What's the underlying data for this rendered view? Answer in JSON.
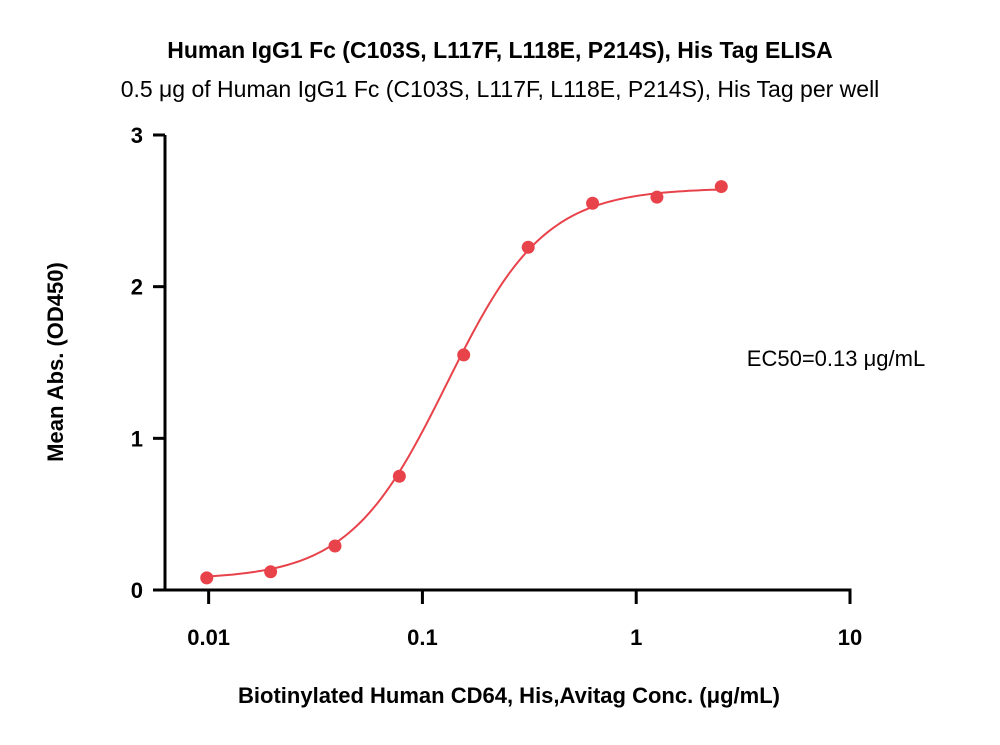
{
  "chart_data": {
    "type": "scatter",
    "title": "Human IgG1 Fc (C103S, L117F, L118E, P214S), His Tag ELISA",
    "subtitle": "0.5 μg of Human IgG1 Fc (C103S, L117F, L118E, P214S), His Tag per well",
    "xlabel": "Biotinylated Human CD64, His,Avitag Conc. (μg/mL)",
    "ylabel": "Mean Abs. (OD450)",
    "xscale": "log",
    "xlim": [
      0.00625,
      10
    ],
    "ylim": [
      0,
      3
    ],
    "xticks": [
      0.01,
      0.1,
      1,
      10
    ],
    "xtick_labels": [
      "0.01",
      "0.1",
      "1",
      "10"
    ],
    "yticks": [
      0,
      1,
      2,
      3
    ],
    "ytick_labels": [
      "0",
      "1",
      "2",
      "3"
    ],
    "grid": false,
    "color": "#e8434b",
    "series": [
      {
        "x": [
          0.0098,
          0.0195,
          0.039,
          0.078,
          0.156,
          0.3125,
          0.625,
          1.25,
          2.5
        ],
        "y": [
          0.08,
          0.12,
          0.29,
          0.75,
          1.55,
          2.26,
          2.55,
          2.59,
          2.66
        ]
      }
    ],
    "fit": {
      "bottom": 0.07,
      "top": 2.65,
      "ec50": 0.13,
      "hill": 1.9
    },
    "annotation": "EC50=0.13 μg/mL"
  }
}
